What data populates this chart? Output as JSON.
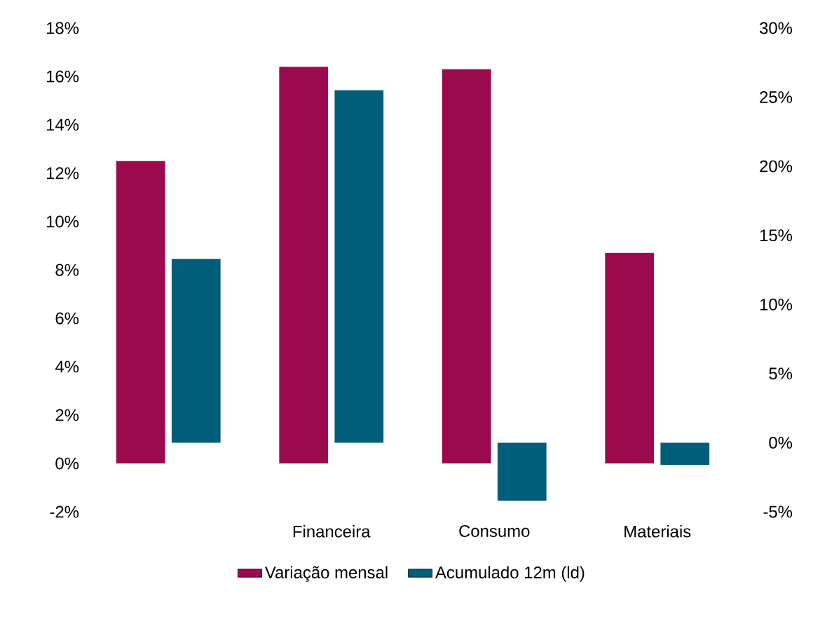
{
  "chart_data": {
    "type": "bar",
    "categories": [
      null,
      "Financeira",
      "Consumo",
      "Materiais"
    ],
    "series": [
      {
        "name": "Variação mensal",
        "color": "#9b0a4d",
        "values": [
          12.5,
          16.4,
          16.3,
          8.7
        ]
      },
      {
        "name": "Acumulado 12m (ld)",
        "color": "#005e7a",
        "values": [
          13.3,
          25.5,
          -4.2,
          -1.6
        ],
        "axis": "y2"
      }
    ],
    "ylim": [
      -2,
      18
    ],
    "yticks": [
      {
        "value": -2,
        "label": "-2%"
      },
      {
        "value": 0,
        "label": "0%"
      },
      {
        "value": 2,
        "label": "2%"
      },
      {
        "value": 4,
        "label": "4%"
      },
      {
        "value": 6,
        "label": "6%"
      },
      {
        "value": 8,
        "label": "8%"
      },
      {
        "value": 10,
        "label": "10%"
      },
      {
        "value": 12,
        "label": "12%"
      },
      {
        "value": 14,
        "label": "14%"
      },
      {
        "value": 16,
        "label": "16%"
      },
      {
        "value": 18,
        "label": "18%"
      }
    ],
    "y2lim": [
      -5,
      30
    ],
    "y2ticks": [
      {
        "value": -5,
        "label": "-5%"
      },
      {
        "value": 0,
        "label": "0%"
      },
      {
        "value": 5,
        "label": "5%"
      },
      {
        "value": 10,
        "label": "10%"
      },
      {
        "value": 15,
        "label": "15%"
      },
      {
        "value": 20,
        "label": "20%"
      },
      {
        "value": 25,
        "label": "25%"
      },
      {
        "value": 30,
        "label": "30%"
      }
    ],
    "legend": "bottom"
  }
}
